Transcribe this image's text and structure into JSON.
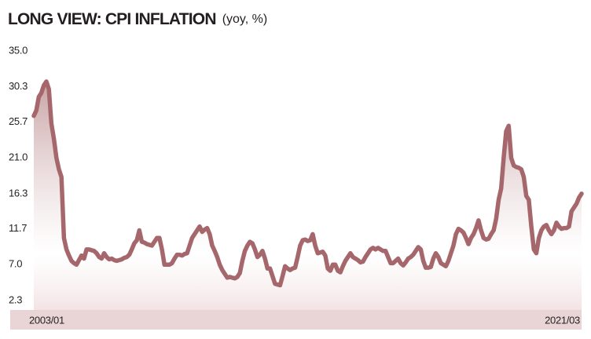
{
  "chart_data": {
    "type": "line",
    "title": "LONG VIEW: CPI INFLATION",
    "subtitle": "(yoy, %)",
    "color": "#a5676b",
    "area_color": "#c9a3a5",
    "band_color": "#ead5d6",
    "grid": false,
    "ylim": [
      2.3,
      35
    ],
    "yticks": [
      {
        "value": 35,
        "label": "35.0"
      },
      30.3,
      25.7,
      {
        "value": 21,
        "label": "21.0"
      },
      16.3,
      11.7,
      {
        "value": 7,
        "label": "7.0"
      },
      2.3
    ],
    "categories": [
      "2003/01",
      null,
      null,
      null,
      null,
      null,
      null,
      null,
      null,
      null,
      null,
      null,
      null,
      null,
      null,
      null,
      null,
      null,
      null,
      null,
      null,
      null,
      null,
      null,
      null,
      null,
      null,
      null,
      null,
      null,
      null,
      null,
      null,
      null,
      null,
      null,
      null,
      null,
      null,
      null,
      null,
      null,
      null,
      null,
      null,
      null,
      null,
      null,
      null,
      null,
      null,
      null,
      null,
      null,
      null,
      null,
      null,
      null,
      null,
      null,
      null,
      null,
      null,
      null,
      null,
      null,
      null,
      null,
      null,
      null,
      null,
      null,
      null,
      null,
      null,
      null,
      null,
      null,
      null,
      null,
      null,
      null,
      null,
      null,
      null,
      null,
      null,
      null,
      null,
      null,
      null,
      null,
      null,
      null,
      null,
      null,
      null,
      null,
      null,
      null,
      null,
      null,
      null,
      null,
      null,
      null,
      null,
      null,
      null,
      null,
      null,
      null,
      null,
      null,
      null,
      null,
      null,
      null,
      null,
      null,
      null,
      null,
      null,
      null,
      null,
      null,
      null,
      null,
      null,
      null,
      null,
      null,
      null,
      null,
      null,
      null,
      null,
      null,
      null,
      null,
      null,
      null,
      null,
      null,
      null,
      null,
      null,
      null,
      null,
      null,
      null,
      null,
      null,
      null,
      null,
      null,
      null,
      null,
      null,
      null,
      null,
      null,
      null,
      null,
      null,
      null,
      null,
      null,
      null,
      null,
      null,
      null,
      null,
      null,
      null,
      null,
      null,
      null,
      null,
      null,
      null,
      null,
      null,
      null,
      null,
      null,
      null,
      null,
      null,
      null,
      null,
      null,
      null,
      null,
      null,
      null,
      null,
      null,
      null,
      null,
      null,
      null,
      null,
      null,
      null,
      null,
      null,
      null,
      null,
      null,
      null,
      null,
      null,
      null,
      null,
      null,
      null,
      null,
      "2021/03"
    ],
    "values": [
      26.5,
      27.2,
      29.0,
      29.5,
      30.5,
      31.0,
      30.0,
      25.5,
      23.5,
      21.0,
      19.5,
      18.5,
      10.5,
      9.0,
      8.2,
      7.5,
      7.2,
      7.0,
      7.6,
      8.2,
      7.8,
      9.0,
      9.0,
      8.9,
      8.8,
      8.5,
      8.0,
      7.8,
      8.5,
      8.0,
      7.7,
      7.8,
      7.6,
      7.5,
      7.6,
      7.7,
      7.9,
      8.0,
      8.3,
      9.0,
      9.8,
      10.2,
      11.5,
      10.0,
      9.9,
      9.7,
      9.6,
      9.5,
      10.0,
      10.5,
      10.5,
      9.0,
      7.0,
      7.0,
      7.0,
      7.2,
      7.8,
      8.3,
      8.3,
      8.2,
      8.4,
      8.5,
      9.5,
      10.5,
      11.0,
      11.5,
      12.0,
      11.3,
      11.6,
      11.8,
      11.0,
      9.5,
      8.8,
      8.0,
      7.0,
      6.3,
      5.8,
      5.3,
      5.4,
      5.3,
      5.2,
      5.4,
      5.9,
      7.5,
      8.8,
      9.5,
      10.0,
      9.8,
      9.0,
      8.0,
      8.3,
      8.8,
      7.8,
      6.5,
      6.5,
      5.5,
      4.5,
      4.4,
      4.3,
      5.5,
      6.8,
      6.5,
      6.3,
      6.5,
      6.6,
      8.0,
      9.5,
      10.2,
      10.3,
      10.1,
      10.2,
      11.0,
      9.5,
      8.5,
      8.6,
      8.7,
      8.2,
      6.5,
      6.2,
      7.0,
      7.0,
      6.2,
      6.0,
      6.8,
      7.5,
      8.0,
      8.5,
      8.0,
      7.8,
      7.6,
      7.3,
      7.4,
      8.0,
      8.5,
      9.0,
      9.2,
      9.0,
      9.2,
      9.0,
      8.8,
      8.8,
      8.0,
      7.2,
      7.2,
      7.5,
      7.8,
      7.2,
      6.9,
      7.3,
      7.8,
      8.0,
      8.3,
      8.8,
      9.3,
      9.0,
      7.5,
      6.6,
      6.6,
      6.7,
      7.8,
      8.5,
      8.0,
      7.2,
      7.0,
      6.8,
      7.5,
      8.5,
      9.5,
      11.0,
      11.7,
      11.5,
      11.2,
      10.5,
      9.7,
      10.5,
      11.0,
      11.8,
      12.8,
      11.5,
      10.5,
      10.3,
      10.4,
      11.0,
      11.5,
      13.0,
      15.5,
      17.0,
      21.0,
      24.5,
      25.2,
      21.0,
      20.0,
      19.8,
      19.7,
      19.5,
      18.5,
      16.0,
      15.5,
      12.0,
      9.0,
      8.5,
      10.5,
      11.5,
      12.0,
      12.2,
      11.5,
      11.0,
      11.5,
      12.5,
      12.0,
      11.7,
      11.8,
      11.8,
      12.0,
      14.0,
      14.5,
      15.0,
      15.8,
      16.3
    ]
  }
}
